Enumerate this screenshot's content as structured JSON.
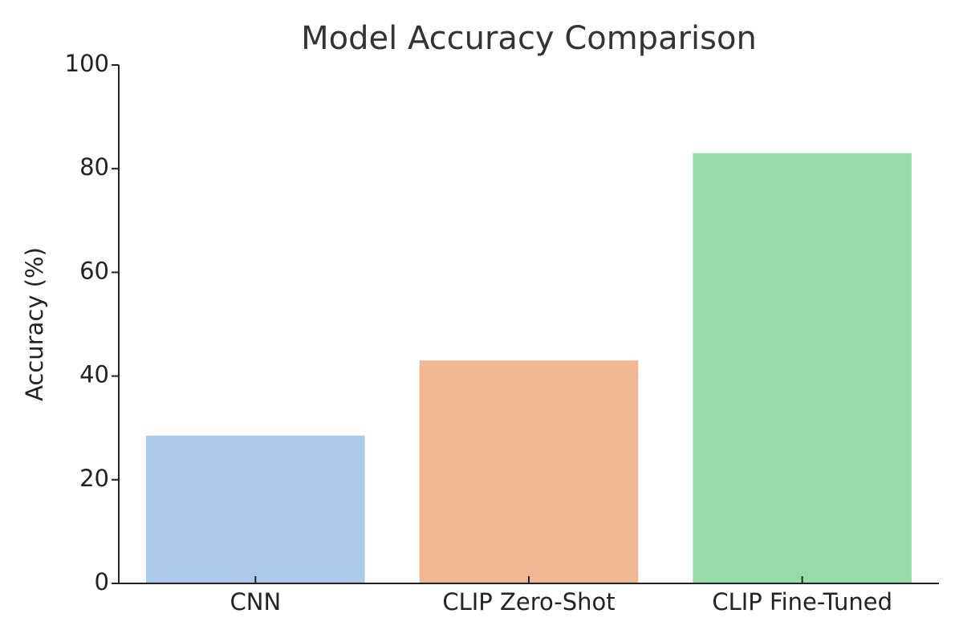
{
  "chart_data": {
    "type": "bar",
    "title": "Model Accuracy Comparison",
    "ylabel": "Accuracy (%)",
    "categories": [
      "CNN",
      "CLIP Zero-Shot",
      "CLIP Fine-Tuned"
    ],
    "values": [
      28.5,
      43,
      83
    ],
    "colors": [
      "#abc9eb",
      "#f0b792",
      "#98dbaa"
    ],
    "ylim": [
      0,
      100
    ],
    "yticks": [
      0,
      20,
      40,
      60,
      80,
      100
    ]
  }
}
